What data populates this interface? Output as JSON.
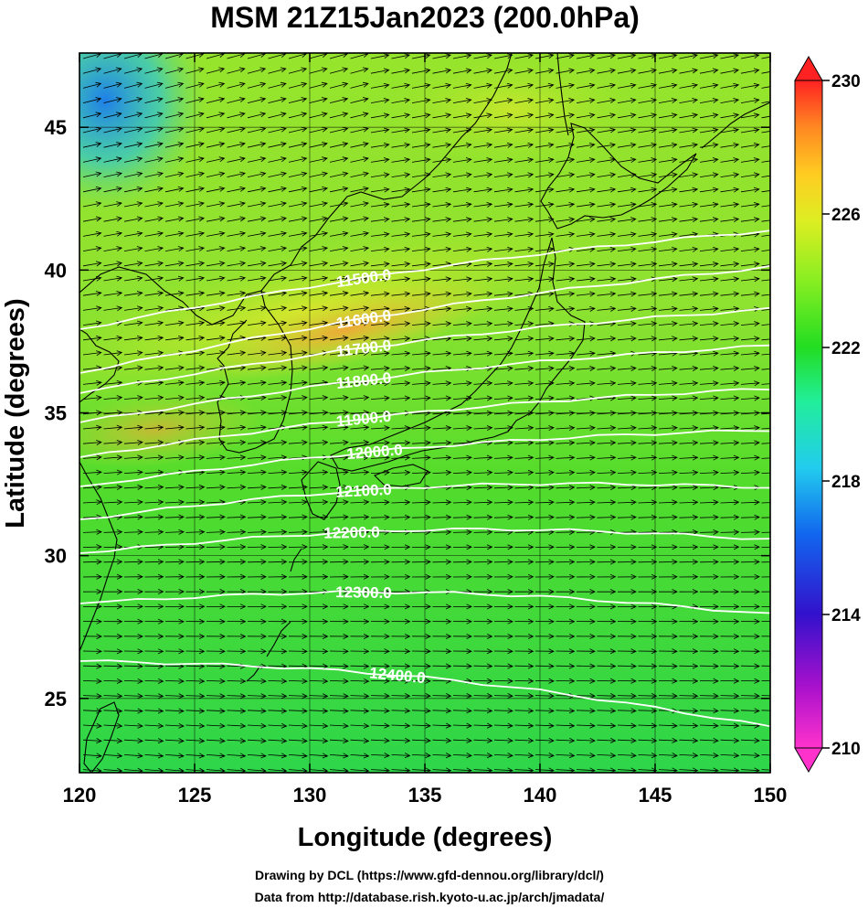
{
  "figure": {
    "title": "MSM 21Z15Jan2023 (200.0hPa)",
    "xlabel": "Longitude (degrees)",
    "ylabel": "Latitude  (degrees)",
    "credit_line1": "Drawing by DCL (https://www.gfd-dennou.org/library/dcl/)",
    "credit_line2": "Data from http://database.rish.kyoto-u.ac.jp/arch/jmadata/"
  },
  "axes": {
    "xlim": [
      120,
      150
    ],
    "ylim": [
      22.4,
      47.6
    ],
    "x_ticks": [
      "120",
      "125",
      "130",
      "135",
      "140",
      "145",
      "150"
    ],
    "y_ticks": [
      "25",
      "30",
      "35",
      "40",
      "45"
    ]
  },
  "colorbar": {
    "labels": [
      "230",
      "226",
      "222",
      "218",
      "214",
      "210"
    ],
    "range": [
      210,
      230
    ],
    "colors": [
      "#ff33cc",
      "#aa11cc",
      "#3311cc",
      "#1166ee",
      "#22ccee",
      "#22ee99",
      "#22dd22",
      "#88ee22",
      "#ddee22",
      "#ffcc22",
      "#ff8822",
      "#ff2222"
    ]
  },
  "contours": [
    {
      "label": "11500.0"
    },
    {
      "label": "11600.0"
    },
    {
      "label": "11700.0"
    },
    {
      "label": "11800.0"
    },
    {
      "label": "11900.0"
    },
    {
      "label": "12000.0"
    },
    {
      "label": "12100.0"
    },
    {
      "label": "12200.0"
    },
    {
      "label": "12300.0"
    },
    {
      "label": "12400.0"
    }
  ],
  "colors": {
    "contour": "#ffffff",
    "coast": "#000000",
    "background": "#ffffff"
  }
}
